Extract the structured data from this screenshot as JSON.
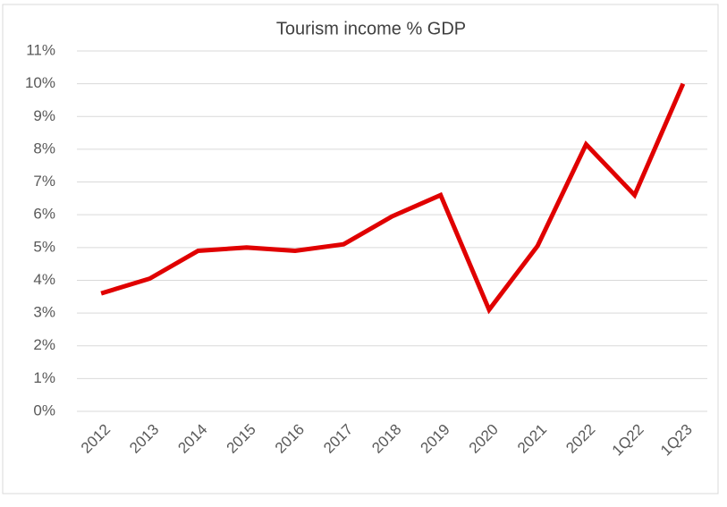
{
  "chart_data": {
    "type": "line",
    "title": "Tourism income % GDP",
    "categories": [
      "2012",
      "2013",
      "2014",
      "2015",
      "2016",
      "2017",
      "2018",
      "2019",
      "2020",
      "2021",
      "2022",
      "1Q22",
      "1Q23"
    ],
    "series": [
      {
        "name": "Tourism income % GDP",
        "color": "#e00000",
        "values": [
          3.6,
          4.05,
          4.9,
          5.0,
          4.9,
          5.1,
          5.95,
          6.6,
          3.1,
          5.05,
          8.15,
          6.6,
          10.0
        ]
      }
    ],
    "ylim": [
      0,
      11
    ],
    "yticks": [
      {
        "value": 0,
        "label": "0%"
      },
      {
        "value": 1,
        "label": "1%"
      },
      {
        "value": 2,
        "label": "2%"
      },
      {
        "value": 3,
        "label": "3%"
      },
      {
        "value": 4,
        "label": "4%"
      },
      {
        "value": 5,
        "label": "5%"
      },
      {
        "value": 6,
        "label": "6%"
      },
      {
        "value": 7,
        "label": "7%"
      },
      {
        "value": 8,
        "label": "8%"
      },
      {
        "value": 9,
        "label": "9%"
      },
      {
        "value": 10,
        "label": "10%"
      },
      {
        "value": 11,
        "label": "11%"
      }
    ],
    "grid": true
  }
}
